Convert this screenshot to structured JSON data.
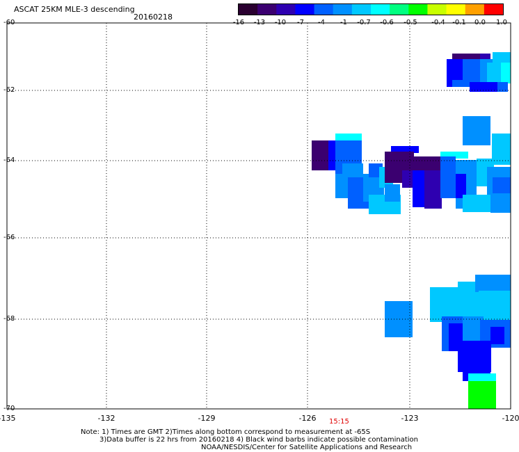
{
  "header": {
    "title": "ASCAT 25KM MLE-3 descending",
    "date": "20160218"
  },
  "colorbar": {
    "labels": [
      "-16",
      "-13",
      "-10",
      "-7",
      "-4",
      "-1",
      "-0.7",
      "-0.6",
      "-0.5",
      "-0.4",
      "-0.1",
      "0.0",
      "1.0"
    ],
    "colors": [
      "#2a0030",
      "#3b0070",
      "#2e00b0",
      "#0000ff",
      "#0060ff",
      "#0090ff",
      "#00c8ff",
      "#00ffff",
      "#00ff80",
      "#00ff00",
      "#c8ff00",
      "#ffff00",
      "#ffa000",
      "#ff0000"
    ]
  },
  "map": {
    "y_ticks": [
      "-60",
      "-62",
      "-64",
      "-66",
      "-68",
      "-70"
    ],
    "x_ticks": [
      "-135",
      "-132",
      "-129",
      "-126",
      "-123",
      "-120"
    ],
    "time_label": "15:15"
  },
  "notes": {
    "line1": "Note: 1) Times are GMT 2)Times along bottom correspond to measurement at -65S",
    "line2": "3)Data buffer is 22 hrs from 20160218 4) Black wind barbs indicate possible contamination",
    "line3": "NOAA/NESDIS/Center for Satellite Applications and Research"
  }
}
